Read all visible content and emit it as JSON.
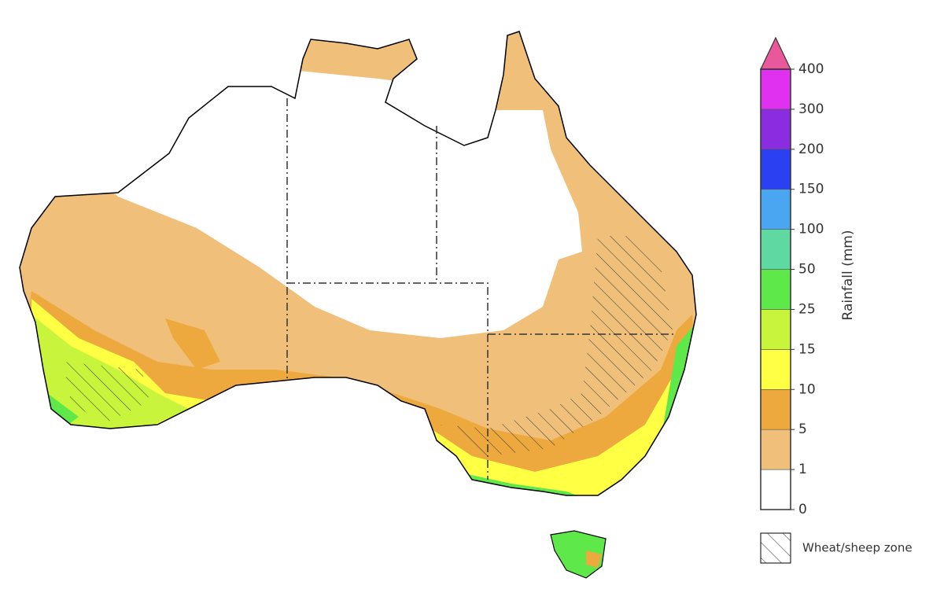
{
  "colorbar": {
    "label": "Rainfall (mm)",
    "ticks": [
      0,
      1,
      5,
      10,
      15,
      25,
      50,
      100,
      150,
      200,
      300,
      400
    ],
    "colors": [
      "#ffffff",
      "#f0c07a",
      "#eda93e",
      "#ffff44",
      "#c8f53c",
      "#5ee84a",
      "#60d8a2",
      "#4aa6f0",
      "#2b40f0",
      "#8a2ce0",
      "#e030f0"
    ],
    "over_color": "#e8589a"
  },
  "hatch_legend": "Wheat/sheep zone"
}
